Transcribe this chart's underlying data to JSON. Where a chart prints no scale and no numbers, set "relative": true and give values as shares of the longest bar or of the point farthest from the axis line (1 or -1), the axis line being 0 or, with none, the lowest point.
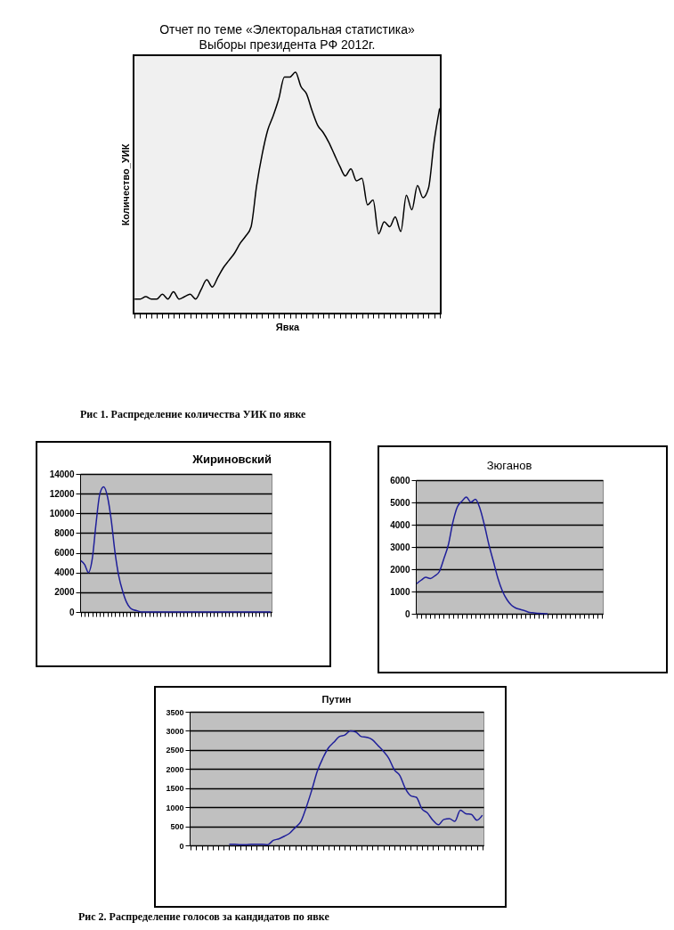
{
  "chart_data": [
    {
      "type": "line",
      "title": "Отчет по теме «Электоральная статистика»",
      "subtitle": "Выборы президента РФ 2012г.",
      "xlabel": "Явка",
      "ylabel": "Количество_УИК",
      "color": "#000000",
      "categories": [
        null,
        null,
        null,
        null,
        null,
        null,
        null,
        null,
        null,
        null,
        null,
        null,
        null,
        null,
        null,
        null,
        null,
        null,
        null,
        null,
        null,
        null,
        null,
        null,
        null,
        null,
        null,
        null,
        null,
        null,
        null,
        null,
        null,
        null,
        null,
        null,
        null,
        null,
        null,
        null,
        null,
        null,
        null,
        null,
        null,
        null,
        null,
        null,
        null,
        null,
        null,
        null,
        null,
        null,
        null,
        null
      ],
      "values": [
        0.06,
        0.06,
        0.07,
        0.06,
        0.06,
        0.08,
        0.06,
        0.09,
        0.06,
        0.07,
        0.08,
        0.06,
        0.1,
        0.14,
        0.11,
        0.15,
        0.19,
        0.22,
        0.25,
        0.29,
        0.32,
        0.36,
        0.53,
        0.66,
        0.76,
        0.82,
        0.89,
        0.98,
        0.98,
        1,
        0.94,
        0.91,
        0.84,
        0.78,
        0.75,
        0.71,
        0.66,
        0.61,
        0.57,
        0.6,
        0.55,
        0.56,
        0.45,
        0.47,
        0.33,
        0.38,
        0.36,
        0.4,
        0.34,
        0.49,
        0.43,
        0.53,
        0.48,
        0.52,
        0.71,
        0.85
      ],
      "relative": true,
      "tick_labels": false,
      "annotations": [
        "Рис 1. Распределение количества УИК по явке"
      ]
    },
    {
      "type": "line",
      "title": "Жириновский",
      "color": "#1f1f9a",
      "grid": "y",
      "tick_labels": "y",
      "categories": [
        null,
        null,
        null,
        null,
        null,
        null,
        null,
        null,
        null,
        null,
        null,
        null,
        null,
        null,
        null,
        null,
        null,
        null,
        null,
        null,
        null,
        null,
        null,
        null,
        null,
        null,
        null,
        null,
        null,
        null,
        null,
        null,
        null,
        null,
        null,
        null,
        null,
        null,
        null,
        null,
        null,
        null,
        null,
        null,
        null,
        null,
        null,
        null,
        null,
        null,
        null
      ],
      "values": [
        5200,
        4800,
        4000,
        5400,
        9000,
        12000,
        12700,
        11700,
        9300,
        6000,
        3600,
        2100,
        1000,
        400,
        200,
        100,
        0,
        0,
        0,
        0,
        0,
        0,
        0,
        0,
        0,
        0,
        0,
        0,
        0,
        0,
        0,
        0,
        0,
        0,
        0,
        0,
        0,
        0,
        0,
        0,
        0,
        0,
        0,
        0,
        0,
        0,
        0,
        0,
        0,
        0,
        0
      ],
      "ylim": [
        0,
        14000
      ],
      "yticks": [
        0,
        2000,
        4000,
        6000,
        8000,
        10000,
        12000,
        14000
      ]
    },
    {
      "type": "line",
      "title": "Зюганов",
      "color": "#1f1f9a",
      "grid": "y",
      "tick_labels": "y",
      "categories": [
        null,
        null,
        null,
        null,
        null,
        null,
        null,
        null,
        null,
        null,
        null,
        null,
        null,
        null,
        null,
        null,
        null,
        null,
        null,
        null,
        null,
        null,
        null,
        null,
        null,
        null,
        null,
        null,
        null,
        null,
        null,
        null,
        null,
        null,
        null,
        null,
        null,
        null,
        null,
        null,
        null,
        null
      ],
      "values": [
        1350,
        1510,
        1640,
        1580,
        1700,
        1890,
        2460,
        3090,
        4100,
        4800,
        5050,
        5240,
        5010,
        5140,
        4730,
        3980,
        3090,
        2340,
        1580,
        1010,
        630,
        380,
        250,
        190,
        130,
        60,
        40,
        20,
        10,
        0,
        null,
        null,
        null,
        null,
        null,
        null,
        null,
        null,
        null,
        null,
        null,
        null
      ],
      "ylim": [
        0,
        6000
      ],
      "yticks": [
        0,
        1000,
        2000,
        3000,
        4000,
        5000,
        6000
      ]
    },
    {
      "type": "line",
      "title": "Путин",
      "color": "#1f1f9a",
      "grid": "y",
      "tick_labels": "y",
      "categories": [
        null,
        null,
        null,
        null,
        null,
        null,
        null,
        null,
        null,
        null,
        null,
        null,
        null,
        null,
        null,
        null,
        null,
        null,
        null,
        null,
        null,
        null,
        null,
        null,
        null,
        null,
        null,
        null,
        null,
        null,
        null,
        null,
        null,
        null,
        null,
        null,
        null,
        null,
        null,
        null,
        null,
        null,
        null,
        null,
        null,
        null,
        null,
        null,
        null,
        null,
        null,
        null,
        null,
        null
      ],
      "values": [
        null,
        null,
        null,
        null,
        null,
        null,
        null,
        30,
        30,
        20,
        20,
        30,
        30,
        30,
        20,
        130,
        170,
        240,
        320,
        470,
        620,
        1000,
        1450,
        1940,
        2280,
        2550,
        2700,
        2850,
        2890,
        3000,
        2970,
        2850,
        2830,
        2770,
        2620,
        2470,
        2280,
        1980,
        1830,
        1490,
        1300,
        1260,
        960,
        850,
        660,
        540,
        680,
        700,
        630,
        920,
        830,
        810,
        660,
        790
      ],
      "ylim": [
        0,
        3500
      ],
      "yticks": [
        0,
        500,
        1000,
        1500,
        2000,
        2500,
        3000,
        3500
      ],
      "annotations": [
        "Рис 2. Распределение голосов за кандидатов по явке"
      ]
    }
  ]
}
